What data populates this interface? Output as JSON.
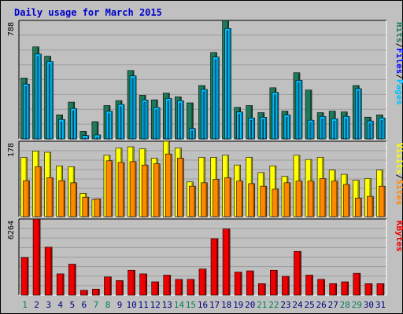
{
  "title": "Daily usage for March 2015",
  "colors": {
    "hits": "#1f7a5c",
    "files": "#00c0ff",
    "pages": "#00c0ff",
    "sites": "#ff8800",
    "visits": "#ffff00",
    "kbytes": "#ee0000",
    "weekend_label": "#00805c",
    "weekday_label": "#000080"
  },
  "chart_data": [
    {
      "type": "bar",
      "panel": "top",
      "ymax_label": "788",
      "ylim": [
        0,
        788
      ],
      "legend_right": [
        {
          "name": "Pages",
          "color": "#00c0ff"
        },
        {
          "name": "/",
          "color": "#000000"
        },
        {
          "name": "Files",
          "color": "#0000ff"
        },
        {
          "name": "/",
          "color": "#000000"
        },
        {
          "name": "Hits",
          "color": "#1f7a5c"
        }
      ],
      "categories": [
        "1",
        "2",
        "3",
        "4",
        "5",
        "6",
        "7",
        "8",
        "9",
        "10",
        "11",
        "12",
        "13",
        "14",
        "15",
        "16",
        "17",
        "18",
        "19",
        "20",
        "21",
        "22",
        "23",
        "24",
        "25",
        "26",
        "27",
        "28",
        "29",
        "30",
        "31"
      ],
      "series": [
        {
          "name": "Hits",
          "values": [
            405,
            612,
            550,
            160,
            245,
            50,
            115,
            222,
            255,
            455,
            290,
            260,
            305,
            280,
            240,
            355,
            575,
            788,
            210,
            222,
            175,
            340,
            185,
            440,
            325,
            175,
            185,
            180,
            355,
            145,
            160
          ]
        },
        {
          "name": "Files",
          "values": [
            380,
            580,
            530,
            145,
            218,
            38,
            42,
            200,
            245,
            435,
            275,
            225,
            285,
            270,
            85,
            345,
            560,
            750,
            195,
            155,
            160,
            325,
            175,
            405,
            140,
            165,
            150,
            165,
            350,
            135,
            155
          ]
        },
        {
          "name": "Pages",
          "values": [
            380,
            580,
            530,
            145,
            218,
            38,
            42,
            200,
            245,
            435,
            275,
            225,
            285,
            270,
            85,
            345,
            560,
            750,
            195,
            155,
            160,
            325,
            175,
            405,
            140,
            165,
            150,
            165,
            350,
            135,
            155
          ]
        }
      ]
    },
    {
      "type": "bar",
      "panel": "middle",
      "ymax_label": "178",
      "ylim": [
        0,
        178
      ],
      "legend_right": [
        {
          "name": "Sites",
          "color": "#ff8800"
        },
        {
          "name": "/",
          "color": "#000000"
        },
        {
          "name": "Visits",
          "color": "#ffff00"
        }
      ],
      "categories": [
        "1",
        "2",
        "3",
        "4",
        "5",
        "6",
        "7",
        "8",
        "9",
        "10",
        "11",
        "12",
        "13",
        "14",
        "15",
        "16",
        "17",
        "18",
        "19",
        "20",
        "21",
        "22",
        "23",
        "24",
        "25",
        "26",
        "27",
        "28",
        "29",
        "30",
        "31"
      ],
      "series": [
        {
          "name": "Visits",
          "values": [
            140,
            155,
            152,
            120,
            118,
            55,
            40,
            145,
            162,
            165,
            160,
            138,
            178,
            162,
            82,
            140,
            140,
            145,
            122,
            140,
            104,
            120,
            95,
            145,
            135,
            140,
            110,
            100,
            86,
            90,
            110
          ]
        },
        {
          "name": "Sites",
          "values": [
            85,
            118,
            92,
            85,
            80,
            46,
            42,
            132,
            128,
            130,
            122,
            125,
            148,
            138,
            72,
            80,
            88,
            92,
            84,
            78,
            72,
            65,
            80,
            84,
            84,
            90,
            84,
            76,
            44,
            48,
            72
          ]
        }
      ]
    },
    {
      "type": "bar",
      "panel": "bottom",
      "ymax_label": "6264",
      "ylim": [
        0,
        6264
      ],
      "legend_right": [
        {
          "name": "KBytes",
          "color": "#ee0000"
        }
      ],
      "categories": [
        "1",
        "2",
        "3",
        "4",
        "5",
        "6",
        "7",
        "8",
        "9",
        "10",
        "11",
        "12",
        "13",
        "14",
        "15",
        "16",
        "17",
        "18",
        "19",
        "20",
        "21",
        "22",
        "23",
        "24",
        "25",
        "26",
        "27",
        "28",
        "29",
        "30",
        "31"
      ],
      "series": [
        {
          "name": "KBytes",
          "values": [
            3100,
            6264,
            3950,
            1750,
            2550,
            400,
            500,
            1500,
            1200,
            2050,
            1750,
            1100,
            1650,
            1300,
            1300,
            2150,
            4650,
            5450,
            1900,
            2000,
            950,
            2050,
            1550,
            3600,
            1650,
            1300,
            950,
            1100,
            1800,
            950,
            950
          ]
        }
      ]
    }
  ],
  "weekend_days": [
    "1",
    "7",
    "8",
    "14",
    "15",
    "21",
    "22",
    "28",
    "29"
  ]
}
